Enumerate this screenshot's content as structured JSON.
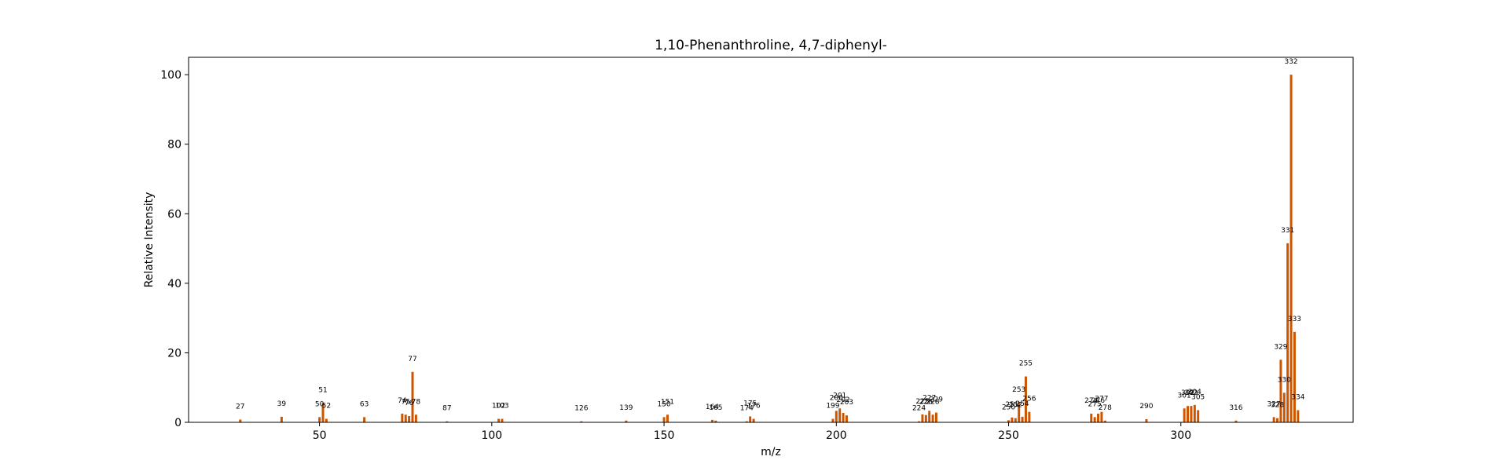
{
  "chart_data": {
    "type": "bar",
    "title": "1,10-Phenanthroline, 4,7-diphenyl-",
    "xlabel": "m/z",
    "ylabel": "Relative Intensity",
    "xlim": [
      12,
      350
    ],
    "ylim": [
      0,
      105
    ],
    "xticks": [
      50,
      100,
      150,
      200,
      250,
      300
    ],
    "yticks": [
      0,
      20,
      40,
      60,
      80,
      100
    ],
    "grid": false,
    "bar_color": "#cc5500",
    "peaks": [
      {
        "mz": 27,
        "intensity": 0.8,
        "label": "27"
      },
      {
        "mz": 39,
        "intensity": 1.6,
        "label": "39"
      },
      {
        "mz": 50,
        "intensity": 1.5,
        "label": "50"
      },
      {
        "mz": 51,
        "intensity": 5.5,
        "label": "51"
      },
      {
        "mz": 52,
        "intensity": 1.0,
        "label": "52"
      },
      {
        "mz": 63,
        "intensity": 1.5,
        "label": "63"
      },
      {
        "mz": 74,
        "intensity": 2.5,
        "label": "74"
      },
      {
        "mz": 75,
        "intensity": 2.2,
        "label": "75"
      },
      {
        "mz": 76,
        "intensity": 1.8,
        "label": "76"
      },
      {
        "mz": 77,
        "intensity": 14.5,
        "label": "77"
      },
      {
        "mz": 78,
        "intensity": 2.2,
        "label": "78"
      },
      {
        "mz": 87,
        "intensity": 0.3,
        "label": "87"
      },
      {
        "mz": 102,
        "intensity": 1.0,
        "label": "102"
      },
      {
        "mz": 103,
        "intensity": 1.0,
        "label": "103"
      },
      {
        "mz": 126,
        "intensity": 0.3,
        "label": "126"
      },
      {
        "mz": 139,
        "intensity": 0.5,
        "label": "139"
      },
      {
        "mz": 150,
        "intensity": 1.5,
        "label": "150"
      },
      {
        "mz": 151,
        "intensity": 2.2,
        "label": "151"
      },
      {
        "mz": 164,
        "intensity": 0.7,
        "label": "164"
      },
      {
        "mz": 165,
        "intensity": 0.5,
        "label": "165"
      },
      {
        "mz": 174,
        "intensity": 0.3,
        "label": "174"
      },
      {
        "mz": 175,
        "intensity": 1.7,
        "label": "175"
      },
      {
        "mz": 176,
        "intensity": 1.0,
        "label": "176"
      },
      {
        "mz": 199,
        "intensity": 1.0,
        "label": "199"
      },
      {
        "mz": 200,
        "intensity": 3.3,
        "label": "200"
      },
      {
        "mz": 201,
        "intensity": 4.0,
        "label": "201"
      },
      {
        "mz": 202,
        "intensity": 2.7,
        "label": "202"
      },
      {
        "mz": 203,
        "intensity": 2.0,
        "label": "203"
      },
      {
        "mz": 224,
        "intensity": 0.3,
        "label": "224"
      },
      {
        "mz": 225,
        "intensity": 2.3,
        "label": "225"
      },
      {
        "mz": 226,
        "intensity": 2.1,
        "label": "226"
      },
      {
        "mz": 227,
        "intensity": 3.3,
        "label": "227"
      },
      {
        "mz": 228,
        "intensity": 2.2,
        "label": "228"
      },
      {
        "mz": 229,
        "intensity": 2.8,
        "label": "229"
      },
      {
        "mz": 250,
        "intensity": 0.6,
        "label": "250"
      },
      {
        "mz": 251,
        "intensity": 1.4,
        "label": "251"
      },
      {
        "mz": 252,
        "intensity": 1.2,
        "label": "252"
      },
      {
        "mz": 253,
        "intensity": 5.7,
        "label": "253"
      },
      {
        "mz": 254,
        "intensity": 1.6,
        "label": "254"
      },
      {
        "mz": 255,
        "intensity": 13.2,
        "label": "255"
      },
      {
        "mz": 256,
        "intensity": 3.0,
        "label": "256"
      },
      {
        "mz": 274,
        "intensity": 2.5,
        "label": "274"
      },
      {
        "mz": 275,
        "intensity": 1.5,
        "label": "275"
      },
      {
        "mz": 276,
        "intensity": 2.5,
        "label": "276"
      },
      {
        "mz": 277,
        "intensity": 3.0,
        "label": "277"
      },
      {
        "mz": 278,
        "intensity": 0.5,
        "label": "278"
      },
      {
        "mz": 290,
        "intensity": 0.9,
        "label": "290"
      },
      {
        "mz": 301,
        "intensity": 4.0,
        "label": "301"
      },
      {
        "mz": 302,
        "intensity": 4.7,
        "label": "302"
      },
      {
        "mz": 303,
        "intensity": 4.7,
        "label": "303"
      },
      {
        "mz": 304,
        "intensity": 5.0,
        "label": "304"
      },
      {
        "mz": 305,
        "intensity": 3.5,
        "label": "305"
      },
      {
        "mz": 316,
        "intensity": 0.5,
        "label": "316"
      },
      {
        "mz": 327,
        "intensity": 1.5,
        "label": "327"
      },
      {
        "mz": 328,
        "intensity": 1.2,
        "label": "328"
      },
      {
        "mz": 329,
        "intensity": 18.0,
        "label": "329"
      },
      {
        "mz": 330,
        "intensity": 8.5,
        "label": "330"
      },
      {
        "mz": 331,
        "intensity": 51.5,
        "label": "331"
      },
      {
        "mz": 332,
        "intensity": 100.0,
        "label": "332"
      },
      {
        "mz": 333,
        "intensity": 26.0,
        "label": "333"
      },
      {
        "mz": 334,
        "intensity": 3.5,
        "label": "334"
      }
    ]
  }
}
